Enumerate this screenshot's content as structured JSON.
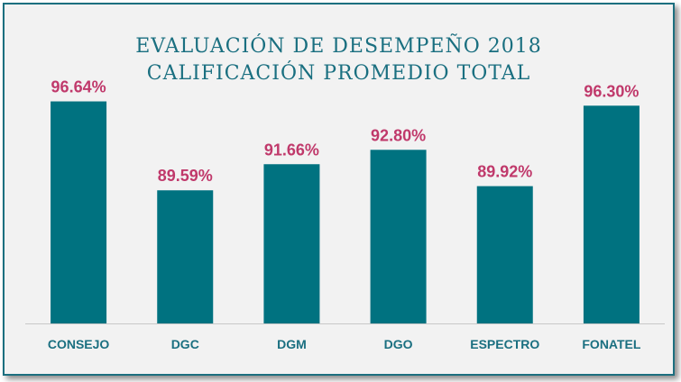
{
  "chart_data": {
    "type": "bar",
    "title": "EVALUACIÓN DE DESEMPEÑO 2018",
    "subtitle": "CALIFICACIÓN PROMEDIO TOTAL",
    "categories": [
      "CONSEJO",
      "DGC",
      "DGM",
      "DGO",
      "ESPECTRO",
      "FONATEL"
    ],
    "values": [
      96.64,
      89.59,
      91.66,
      92.8,
      89.92,
      96.3
    ],
    "value_labels": [
      "96.64%",
      "89.59%",
      "91.66%",
      "92.80%",
      "89.92%",
      "96.30%"
    ],
    "grid": false,
    "legend": "none",
    "colors": {
      "bar": "#007280",
      "value_label": "#c0396b",
      "category_label": "#1a6f80",
      "title": "#1a6f80"
    }
  }
}
